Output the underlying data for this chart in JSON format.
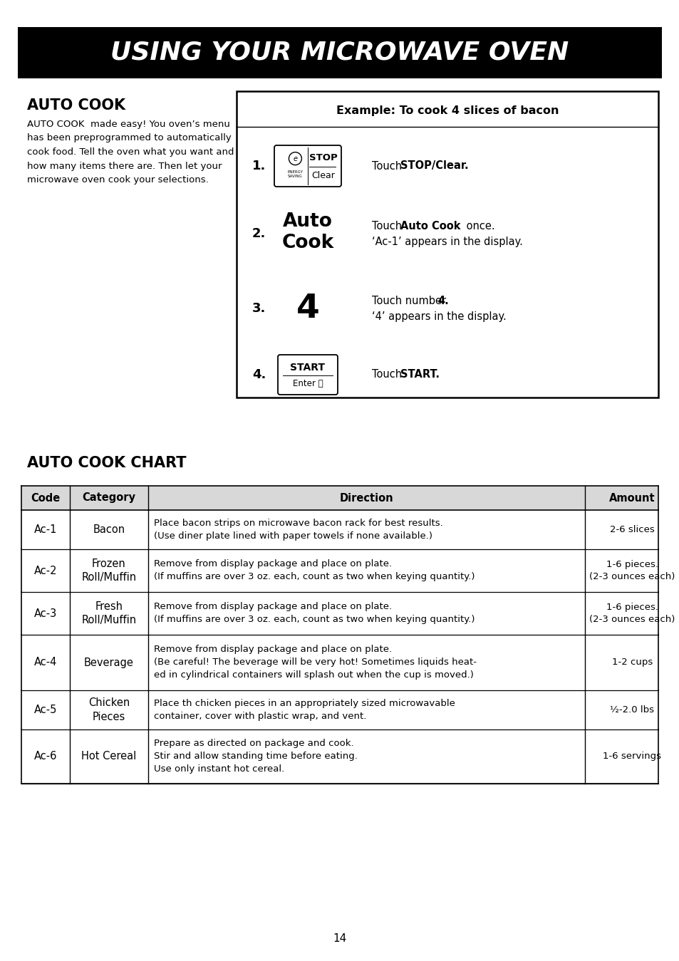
{
  "title": "USING YOUR MICROWAVE OVEN",
  "page_number": "14",
  "background_color": "#ffffff",
  "header_bg": "#000000",
  "header_text_color": "#ffffff",
  "section1_title": "AUTO COOK",
  "section1_body": "AUTO COOK  made easy! You oven’s menu\nhas been preprogrammed to automatically\ncook food. Tell the oven what you want and\nhow many items there are. Then let your\nmicrowave oven cook your selections.",
  "example_title": "Example: To cook 4 slices of bacon",
  "section2_title": "AUTO COOK CHART",
  "table_headers": [
    "Code",
    "Category",
    "Direction",
    "Amount"
  ],
  "table_rows": [
    {
      "code": "Ac-1",
      "category": "Bacon",
      "direction": "Place bacon strips on microwave bacon rack for best results.\n(Use diner plate lined with paper towels if none available.)",
      "amount": "2-6 slices"
    },
    {
      "code": "Ac-2",
      "category": "Frozen\nRoll/Muffin",
      "direction": "Remove from display package and place on plate.\n(If muffins are over 3 oz. each, count as two when keying quantity.)",
      "amount": "1-6 pieces.\n(2-3 ounces each)"
    },
    {
      "code": "Ac-3",
      "category": "Fresh\nRoll/Muffin",
      "direction": "Remove from display package and place on plate.\n(If muffins are over 3 oz. each, count as two when keying quantity.)",
      "amount": "1-6 pieces.\n(2-3 ounces each)"
    },
    {
      "code": "Ac-4",
      "category": "Beverage",
      "direction": "Remove from display package and place on plate.\n(Be careful! The beverage will be very hot! Sometimes liquids heat-\ned in cylindrical containers will splash out when the cup is moved.)",
      "amount": "1-2 cups"
    },
    {
      "code": "Ac-5",
      "category": "Chicken\nPieces",
      "direction": "Place th chicken pieces in an appropriately sized microwavable\ncontainer, cover with plastic wrap, and vent.",
      "amount": "½-2.0 lbs"
    },
    {
      "code": "Ac-6",
      "category": "Hot Cereal",
      "direction": "Prepare as directed on package and cook.\nStir and allow standing time before eating.\nUse only instant hot cereal.",
      "amount": "1-6 servings"
    }
  ]
}
